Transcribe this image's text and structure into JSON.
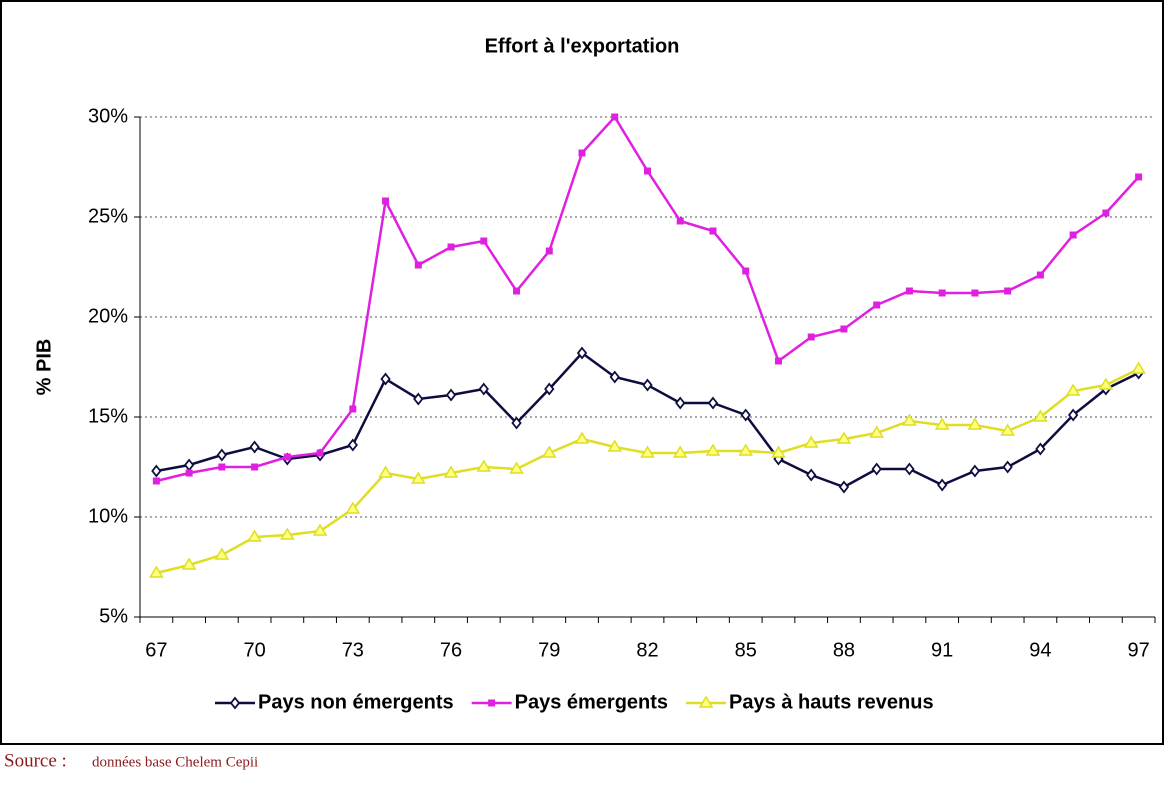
{
  "chart_data": {
    "type": "line",
    "title": "Effort à l'exportation",
    "y_label": "% PIB",
    "categories": [
      "67",
      null,
      null,
      "70",
      null,
      null,
      "73",
      null,
      null,
      "76",
      null,
      null,
      "79",
      null,
      null,
      "82",
      null,
      null,
      "85",
      null,
      null,
      "88",
      null,
      null,
      "91",
      null,
      null,
      "94",
      null,
      null,
      "97"
    ],
    "series": [
      {
        "name": "Pays non émergents",
        "color": "#0d0d40",
        "marker": "diamond",
        "values": [
          12.3,
          12.6,
          13.1,
          13.5,
          12.9,
          13.1,
          13.6,
          16.9,
          15.9,
          16.1,
          16.4,
          14.7,
          16.4,
          18.2,
          17.0,
          16.6,
          15.7,
          15.7,
          15.1,
          12.9,
          12.1,
          11.5,
          12.4,
          12.4,
          11.6,
          12.3,
          12.5,
          13.4,
          15.1,
          16.4,
          17.2
        ]
      },
      {
        "name": "Pays émergents",
        "color": "#e020e0",
        "marker": "square",
        "values": [
          11.8,
          12.2,
          12.5,
          12.5,
          13.0,
          13.2,
          15.4,
          25.8,
          22.6,
          23.5,
          23.8,
          21.3,
          23.3,
          28.2,
          30.0,
          27.3,
          24.8,
          24.3,
          22.3,
          17.8,
          19.0,
          19.4,
          20.6,
          21.3,
          21.2,
          21.2,
          21.3,
          22.1,
          24.1,
          25.2,
          27.0
        ]
      },
      {
        "name": "Pays à hauts revenus",
        "color": "#dede22",
        "marker": "triangle",
        "values": [
          7.2,
          7.6,
          8.1,
          9.0,
          9.1,
          9.3,
          10.4,
          12.2,
          11.9,
          12.2,
          12.5,
          12.4,
          13.2,
          13.9,
          13.5,
          13.2,
          13.2,
          13.3,
          13.3,
          13.2,
          13.7,
          13.9,
          14.2,
          14.8,
          14.6,
          14.6,
          14.3,
          15.0,
          16.3,
          16.6,
          17.4
        ]
      }
    ],
    "ylim": [
      5,
      30
    ],
    "yticks": [
      {
        "value": 5,
        "label": "5%"
      },
      {
        "value": 10,
        "label": "10%"
      },
      {
        "value": 15,
        "label": "15%"
      },
      {
        "value": 20,
        "label": "20%"
      },
      {
        "value": 25,
        "label": "25%"
      },
      {
        "value": 30,
        "label": "30%"
      }
    ],
    "grid": true,
    "legend": "bottom",
    "source": {
      "label": "Source :",
      "text": "données base Chelem Cepii"
    }
  }
}
